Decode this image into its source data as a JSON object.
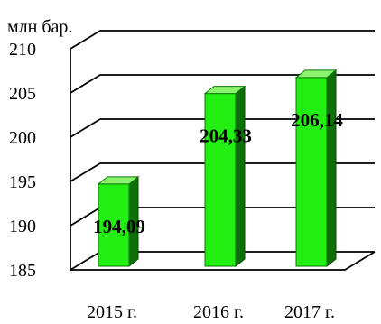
{
  "chart_data": {
    "type": "bar",
    "unit_label": "млн бар.",
    "categories": [
      "2015 г.",
      "2016 г.",
      "2017 г."
    ],
    "values": [
      194.09,
      204.33,
      206.14
    ],
    "value_labels": [
      "194,09",
      "204,33",
      "206,14"
    ],
    "yticks": [
      185,
      190,
      195,
      200,
      205,
      210
    ],
    "ylim": [
      185,
      210
    ],
    "grid": true,
    "colors": {
      "bar_front": "#22ee11",
      "bar_side": "#0e6f08",
      "bar_top": "#8cf36f",
      "grid": "#000000"
    }
  }
}
